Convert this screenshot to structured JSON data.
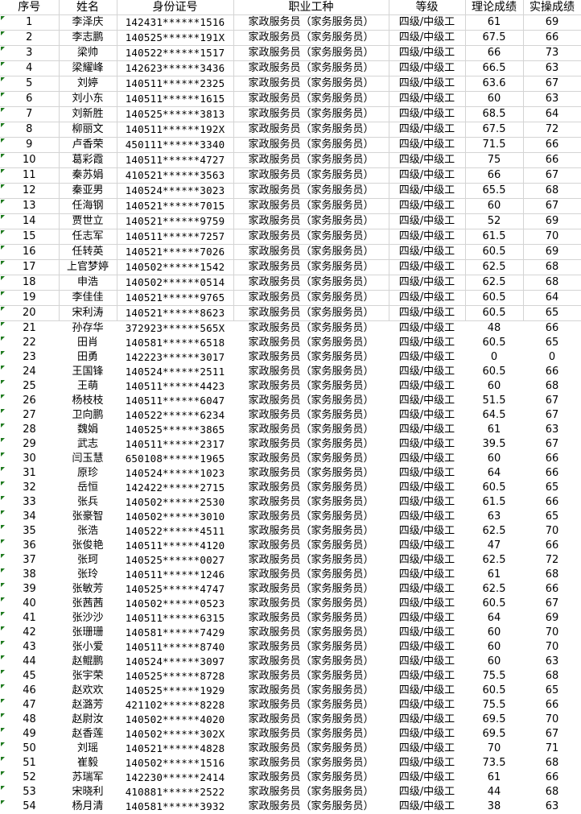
{
  "headers": [
    "序号",
    "姓名",
    "身份证号",
    "职业工种",
    "等级",
    "理论成绩",
    "实操成绩"
  ],
  "marker_color": "#1e7a1e",
  "rows": [
    [
      "1",
      "李泽庆",
      "142431******1516",
      "家政服务员（家务服务员）",
      "四级/中级工",
      "61",
      "69"
    ],
    [
      "2",
      "李志鹏",
      "140525******191X",
      "家政服务员（家务服务员）",
      "四级/中级工",
      "67.5",
      "66"
    ],
    [
      "3",
      "梁帅",
      "140522******1517",
      "家政服务员（家务服务员）",
      "四级/中级工",
      "66",
      "73"
    ],
    [
      "4",
      "梁耀峰",
      "142623******3436",
      "家政服务员（家务服务员）",
      "四级/中级工",
      "66.5",
      "63"
    ],
    [
      "5",
      "刘婷",
      "140511******2325",
      "家政服务员（家务服务员）",
      "四级/中级工",
      "63.6",
      "67"
    ],
    [
      "6",
      "刘小东",
      "140511******1615",
      "家政服务员（家务服务员）",
      "四级/中级工",
      "60",
      "63"
    ],
    [
      "7",
      "刘新胜",
      "140525******3813",
      "家政服务员（家务服务员）",
      "四级/中级工",
      "68.5",
      "64"
    ],
    [
      "8",
      "柳丽文",
      "140511******192X",
      "家政服务员（家务服务员）",
      "四级/中级工",
      "67.5",
      "72"
    ],
    [
      "9",
      "卢香荣",
      "450111******3340",
      "家政服务员（家务服务员）",
      "四级/中级工",
      "71.5",
      "66"
    ],
    [
      "10",
      "葛彩霞",
      "140511******4727",
      "家政服务员（家务服务员）",
      "四级/中级工",
      "75",
      "66"
    ],
    [
      "11",
      "秦苏娟",
      "410521******3563",
      "家政服务员（家务服务员）",
      "四级/中级工",
      "66",
      "67"
    ],
    [
      "12",
      "秦亚男",
      "140524******3023",
      "家政服务员（家务服务员）",
      "四级/中级工",
      "65.5",
      "68"
    ],
    [
      "13",
      "任海钢",
      "140521******7015",
      "家政服务员（家务服务员）",
      "四级/中级工",
      "60",
      "67"
    ],
    [
      "14",
      "贾世立",
      "140521******9759",
      "家政服务员（家务服务员）",
      "四级/中级工",
      "52",
      "69"
    ],
    [
      "15",
      "任志军",
      "140511******7257",
      "家政服务员（家务服务员）",
      "四级/中级工",
      "61.5",
      "70"
    ],
    [
      "16",
      "任转英",
      "140521******7026",
      "家政服务员（家务服务员）",
      "四级/中级工",
      "60.5",
      "69"
    ],
    [
      "17",
      "上官梦婷",
      "140502******1542",
      "家政服务员（家务服务员）",
      "四级/中级工",
      "62.5",
      "68"
    ],
    [
      "18",
      "申浩",
      "140502******0514",
      "家政服务员（家务服务员）",
      "四级/中级工",
      "62.5",
      "68"
    ],
    [
      "19",
      "李佳佳",
      "140521******9765",
      "家政服务员（家务服务员）",
      "四级/中级工",
      "60.5",
      "64"
    ],
    [
      "20",
      "宋利涛",
      "140521******8623",
      "家政服务员（家务服务员）",
      "四级/中级工",
      "60.5",
      "65"
    ],
    [
      "21",
      "孙存华",
      "372923******565X",
      "家政服务员（家务服务员）",
      "四级/中级工",
      "48",
      "66"
    ],
    [
      "22",
      "田肖",
      "140581******6518",
      "家政服务员（家务服务员）",
      "四级/中级工",
      "60.5",
      "65"
    ],
    [
      "23",
      "田勇",
      "142223******3017",
      "家政服务员（家务服务员）",
      "四级/中级工",
      "0",
      "0"
    ],
    [
      "24",
      "王国锋",
      "140524******2511",
      "家政服务员（家务服务员）",
      "四级/中级工",
      "60.5",
      "66"
    ],
    [
      "25",
      "王萌",
      "140511******4423",
      "家政服务员（家务服务员）",
      "四级/中级工",
      "60",
      "68"
    ],
    [
      "26",
      "杨枝枝",
      "140511******6047",
      "家政服务员（家务服务员）",
      "四级/中级工",
      "51.5",
      "67"
    ],
    [
      "27",
      "卫向鹏",
      "140522******6234",
      "家政服务员（家务服务员）",
      "四级/中级工",
      "64.5",
      "67"
    ],
    [
      "28",
      "魏娟",
      "140525******3865",
      "家政服务员（家务服务员）",
      "四级/中级工",
      "61",
      "63"
    ],
    [
      "29",
      "武志",
      "140511******2317",
      "家政服务员（家务服务员）",
      "四级/中级工",
      "39.5",
      "67"
    ],
    [
      "30",
      "闫玉慧",
      "650108******1965",
      "家政服务员（家务服务员）",
      "四级/中级工",
      "60",
      "66"
    ],
    [
      "31",
      "原珍",
      "140524******1023",
      "家政服务员（家务服务员）",
      "四级/中级工",
      "64",
      "66"
    ],
    [
      "32",
      "岳恒",
      "142422******2715",
      "家政服务员（家务服务员）",
      "四级/中级工",
      "60.5",
      "65"
    ],
    [
      "33",
      "张兵",
      "140502******2530",
      "家政服务员（家务服务员）",
      "四级/中级工",
      "61.5",
      "66"
    ],
    [
      "34",
      "张豪智",
      "140502******3010",
      "家政服务员（家务服务员）",
      "四级/中级工",
      "63",
      "65"
    ],
    [
      "35",
      "张浩",
      "140522******4511",
      "家政服务员（家务服务员）",
      "四级/中级工",
      "62.5",
      "70"
    ],
    [
      "36",
      "张俊艳",
      "140511******4120",
      "家政服务员（家务服务员）",
      "四级/中级工",
      "47",
      "66"
    ],
    [
      "37",
      "张珂",
      "140525******0027",
      "家政服务员（家务服务员）",
      "四级/中级工",
      "62.5",
      "72"
    ],
    [
      "38",
      "张玲",
      "140511******1246",
      "家政服务员（家务服务员）",
      "四级/中级工",
      "61",
      "68"
    ],
    [
      "39",
      "张敏芳",
      "140525******4747",
      "家政服务员（家务服务员）",
      "四级/中级工",
      "62.5",
      "66"
    ],
    [
      "40",
      "张茜茜",
      "140502******0523",
      "家政服务员（家务服务员）",
      "四级/中级工",
      "60.5",
      "67"
    ],
    [
      "41",
      "张沙沙",
      "140511******6315",
      "家政服务员（家务服务员）",
      "四级/中级工",
      "64",
      "69"
    ],
    [
      "42",
      "张珊珊",
      "140581******7429",
      "家政服务员（家务服务员）",
      "四级/中级工",
      "60",
      "70"
    ],
    [
      "43",
      "张小爱",
      "140511******8740",
      "家政服务员（家务服务员）",
      "四级/中级工",
      "60",
      "70"
    ],
    [
      "44",
      "赵鲲鹏",
      "140524******3097",
      "家政服务员（家务服务员）",
      "四级/中级工",
      "60",
      "63"
    ],
    [
      "45",
      "张宇荣",
      "140525******8728",
      "家政服务员（家务服务员）",
      "四级/中级工",
      "75.5",
      "68"
    ],
    [
      "46",
      "赵欢欢",
      "140525******1929",
      "家政服务员（家务服务员）",
      "四级/中级工",
      "60.5",
      "65"
    ],
    [
      "47",
      "赵潞芳",
      "421102******8228",
      "家政服务员（家务服务员）",
      "四级/中级工",
      "75.5",
      "66"
    ],
    [
      "48",
      "赵尉汝",
      "140502******4020",
      "家政服务员（家务服务员）",
      "四级/中级工",
      "69.5",
      "70"
    ],
    [
      "49",
      "赵香莲",
      "140502******302X",
      "家政服务员（家务服务员）",
      "四级/中级工",
      "69.5",
      "67"
    ],
    [
      "50",
      "刘瑶",
      "140521******4828",
      "家政服务员（家务服务员）",
      "四级/中级工",
      "70",
      "71"
    ],
    [
      "51",
      "崔毅",
      "140502******1516",
      "家政服务员（家务服务员）",
      "四级/中级工",
      "73.5",
      "68"
    ],
    [
      "52",
      "苏瑞军",
      "142230******2414",
      "家政服务员（家务服务员）",
      "四级/中级工",
      "61",
      "66"
    ],
    [
      "53",
      "宋晓利",
      "410881******2522",
      "家政服务员（家务服务员）",
      "四级/中级工",
      "44",
      "68"
    ],
    [
      "54",
      "杨月清",
      "140581******3932",
      "家政服务员（家务服务员）",
      "四级/中级工",
      "38",
      "63"
    ]
  ]
}
